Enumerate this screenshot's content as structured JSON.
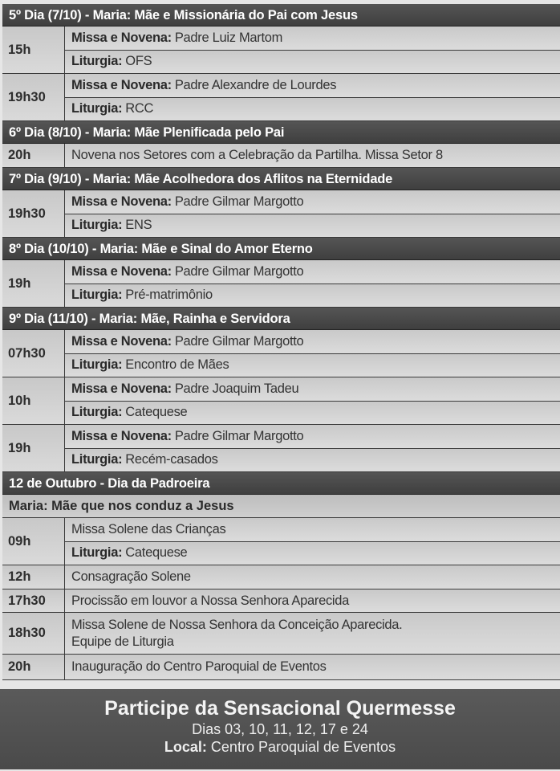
{
  "days": [
    {
      "header": "5º Dia (7/10) - Maria: Mãe e Missionária do Pai com Jesus",
      "slots": [
        {
          "time": "15h",
          "h": 59,
          "lines": [
            {
              "label": "Missa e Novena:",
              "text": "Padre Luiz Martom"
            },
            {
              "label": "Liturgia:",
              "text": "OFS"
            }
          ]
        },
        {
          "time": "19h30",
          "h": 59,
          "lines": [
            {
              "label": "Missa e Novena:",
              "text": "Padre Alexandre de Lourdes"
            },
            {
              "label": "Liturgia:",
              "text": "RCC"
            }
          ]
        }
      ]
    },
    {
      "header": "6º Dia (8/10) - Maria: Mãe Plenificada pelo Pai",
      "slots": [
        {
          "time": "20h",
          "h": 30,
          "lines": [
            {
              "label": "",
              "text": "Novena nos Setores com a Celebração da Partilha. Missa Setor 8"
            }
          ]
        }
      ]
    },
    {
      "header": "7º Dia (9/10) - Maria: Mãe Acolhedora dos Aflitos na Eternidade",
      "slots": [
        {
          "time": "19h30",
          "h": 59,
          "lines": [
            {
              "label": "Missa e Novena:",
              "text": "Padre Gilmar Margotto"
            },
            {
              "label": "Liturgia:",
              "text": "ENS"
            }
          ]
        }
      ]
    },
    {
      "header": "8º Dia (10/10) - Maria: Mãe e Sinal do Amor Eterno",
      "slots": [
        {
          "time": "19h",
          "h": 59,
          "lines": [
            {
              "label": "Missa e Novena:",
              "text": "Padre Gilmar Margotto"
            },
            {
              "label": "Liturgia:",
              "text": "Pré-matrimônio"
            }
          ]
        }
      ]
    },
    {
      "header": "9º Dia (11/10) - Maria: Mãe, Rainha e Servidora",
      "slots": [
        {
          "time": "07h30",
          "h": 59,
          "lines": [
            {
              "label": "Missa e Novena:",
              "text": "Padre Gilmar Margotto"
            },
            {
              "label": "Liturgia:",
              "text": "Encontro de Mães"
            }
          ]
        },
        {
          "time": "10h",
          "h": 59,
          "lines": [
            {
              "label": "Missa e Novena:",
              "text": "Padre Joaquim Tadeu"
            },
            {
              "label": "Liturgia:",
              "text": "Catequese"
            }
          ]
        },
        {
          "time": "19h",
          "h": 59,
          "lines": [
            {
              "label": "Missa e Novena:",
              "text": "Padre Gilmar Margotto"
            },
            {
              "label": "Liturgia:",
              "text": "Recém-casados"
            }
          ]
        }
      ]
    },
    {
      "header": "12 de Outubro - Dia da Padroeira",
      "subheader": "Maria: Mãe que nos conduz a Jesus",
      "slots": [
        {
          "time": "09h",
          "h": 59,
          "lines": [
            {
              "label": "",
              "text": "Missa Solene das Crianças"
            },
            {
              "label": "Liturgia:",
              "text": "Catequese"
            }
          ]
        },
        {
          "time": "12h",
          "h": 30,
          "lines": [
            {
              "label": "",
              "text": "Consagração Solene"
            }
          ]
        },
        {
          "time": "17h30",
          "h": 29,
          "lines": [
            {
              "label": "",
              "text": "Procissão em louvor a Nossa Senhora Aparecida"
            }
          ]
        },
        {
          "time": "18h30",
          "h": 52,
          "multiline": true,
          "lines": [
            {
              "label": "",
              "text": "Missa Solene de Nossa Senhora da Conceição Aparecida."
            },
            {
              "label": "",
              "text": "Equipe de Liturgia"
            }
          ]
        },
        {
          "time": "20h",
          "h": 32,
          "lines": [
            {
              "label": "",
              "text": "Inauguração do Centro Paroquial de Eventos"
            }
          ]
        }
      ]
    }
  ],
  "footer": {
    "title": "Participe da Sensacional Quermesse",
    "dates": "Dias 03, 10, 11, 12, 17 e 24",
    "location_label": "Local:",
    "location": "Centro Paroquial de Eventos"
  }
}
